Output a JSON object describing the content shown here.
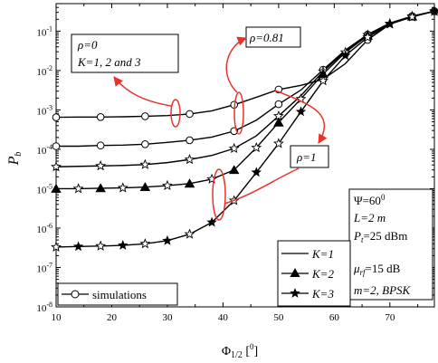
{
  "chart_data": {
    "type": "line",
    "xlabel": "Φ1/2 [0]",
    "xlabel_parts": {
      "main": "Φ",
      "sub": "1/2",
      "bracket_open": " [",
      "sup": "0",
      "bracket_close": "]"
    },
    "ylabel": "Pb",
    "ylabel_parts": {
      "main": "P",
      "sub": "b"
    },
    "xlim": [
      10,
      78
    ],
    "ylim": [
      1e-08,
      0.5
    ],
    "y_scale": "log",
    "x_ticks": [
      10,
      20,
      30,
      40,
      50,
      60,
      70
    ],
    "x_tick_labels": [
      "10",
      "20",
      "30",
      "40",
      "50",
      "60",
      "70"
    ],
    "y_ticks": [
      1e-08,
      1e-07,
      1e-06,
      1e-05,
      0.0001,
      0.001,
      0.01,
      0.1
    ],
    "y_tick_labels": [
      {
        "base": "10",
        "exp": "-8"
      },
      {
        "base": "10",
        "exp": "-7"
      },
      {
        "base": "10",
        "exp": "-6"
      },
      {
        "base": "10",
        "exp": "-5"
      },
      {
        "base": "10",
        "exp": "-4"
      },
      {
        "base": "10",
        "exp": "-3"
      },
      {
        "base": "10",
        "exp": "-2"
      },
      {
        "base": "10",
        "exp": "-1"
      }
    ],
    "grid": false,
    "series": [
      {
        "key": "K1_rho0",
        "group": "K=1",
        "marker": "none",
        "x": [
          10,
          14,
          18,
          22,
          26,
          30,
          34,
          38,
          42,
          46,
          50,
          54,
          58,
          62,
          66,
          70,
          74,
          78
        ],
        "y": [
          0.00065,
          0.00066,
          0.00066,
          0.00067,
          0.00069,
          0.00072,
          0.00079,
          0.00095,
          0.00135,
          0.0021,
          0.0033,
          0.0042,
          0.006,
          0.015,
          0.06,
          0.15,
          0.24,
          0.32
        ]
      },
      {
        "key": "K1_rho081",
        "group": "K=1",
        "marker": "none",
        "x": [
          10,
          14,
          18,
          22,
          26,
          30,
          34,
          38,
          42,
          46,
          50,
          54,
          58,
          62,
          66,
          70,
          74,
          78
        ],
        "y": [
          0.00012,
          0.00012,
          0.000125,
          0.000128,
          0.000135,
          0.00015,
          0.00017,
          0.000205,
          0.00029,
          0.00055,
          0.0014,
          0.0032,
          0.0105,
          0.033,
          0.082,
          0.16,
          0.24,
          0.32
        ]
      },
      {
        "key": "K1_rho1",
        "group": "K=1",
        "marker": "none",
        "x": [
          10,
          14,
          18,
          22,
          26,
          30,
          34,
          38,
          42,
          46,
          50,
          54,
          58,
          62,
          66,
          70,
          74,
          78
        ],
        "y": [
          3.6e-05,
          3.7e-05,
          3.8e-05,
          3.9e-05,
          4.1e-05,
          4.6e-05,
          5.5e-05,
          7e-05,
          0.000105,
          0.00022,
          0.0007,
          0.0023,
          0.0095,
          0.031,
          0.08,
          0.16,
          0.24,
          0.32
        ]
      },
      {
        "key": "K2",
        "group": "K=2",
        "marker": "triangle",
        "x": [
          10,
          14,
          18,
          22,
          26,
          30,
          34,
          38,
          42,
          46,
          50,
          54,
          58,
          62,
          66,
          70,
          74,
          78
        ],
        "y": [
          1e-05,
          1e-05,
          1.03e-05,
          1.05e-05,
          1.1e-05,
          1.2e-05,
          1.35e-05,
          1.75e-05,
          3e-05,
          0.00011,
          0.00048,
          0.0019,
          0.0082,
          0.029,
          0.077,
          0.155,
          0.235,
          0.32
        ]
      },
      {
        "key": "K3",
        "group": "K=3",
        "marker": "star",
        "x": [
          10,
          14,
          18,
          22,
          26,
          30,
          34,
          38,
          42,
          46,
          50,
          54,
          58,
          62,
          66,
          70,
          74,
          78
        ],
        "y": [
          3.3e-07,
          3.4e-07,
          3.5e-07,
          3.65e-07,
          4e-07,
          4.8e-07,
          7e-07,
          1.4e-06,
          5e-06,
          2.6e-05,
          0.00014,
          0.0009,
          0.0055,
          0.024,
          0.07,
          0.15,
          0.23,
          0.32
        ]
      }
    ],
    "marker_x": [
      10,
      14,
      18,
      22,
      26,
      30,
      34,
      38,
      42,
      46,
      50,
      54,
      58,
      62,
      66,
      70,
      74,
      78
    ],
    "annotations": {
      "rho0_line1": "ρ=0",
      "rho0_line2": "K=1, 2 and 3",
      "rho081": "ρ=0.81",
      "rho1": "ρ=1"
    },
    "params": {
      "psi": "Ψ=60",
      "psi_sup": "0",
      "L": "L=2 m",
      "Pt_main": "P",
      "Pt_sub": "t",
      "Pt_rest": "=25 dBm",
      "mu_main": "μ",
      "mu_sub": "rf",
      "mu_rest": "=15 dB",
      "m": "m=2, BPSK"
    },
    "legend": {
      "placement": "bottom-right",
      "entries": [
        {
          "label": "K=1",
          "marker": "none"
        },
        {
          "label": "K=2",
          "marker": "triangle"
        },
        {
          "label": "K=3",
          "marker": "star"
        }
      ],
      "sim_label": "simulations",
      "sim_placement": "bottom-left"
    },
    "colors": {
      "lines": "#000000",
      "annotation": "#e8322a",
      "simulation_marker_fill": "#ffffff"
    }
  }
}
